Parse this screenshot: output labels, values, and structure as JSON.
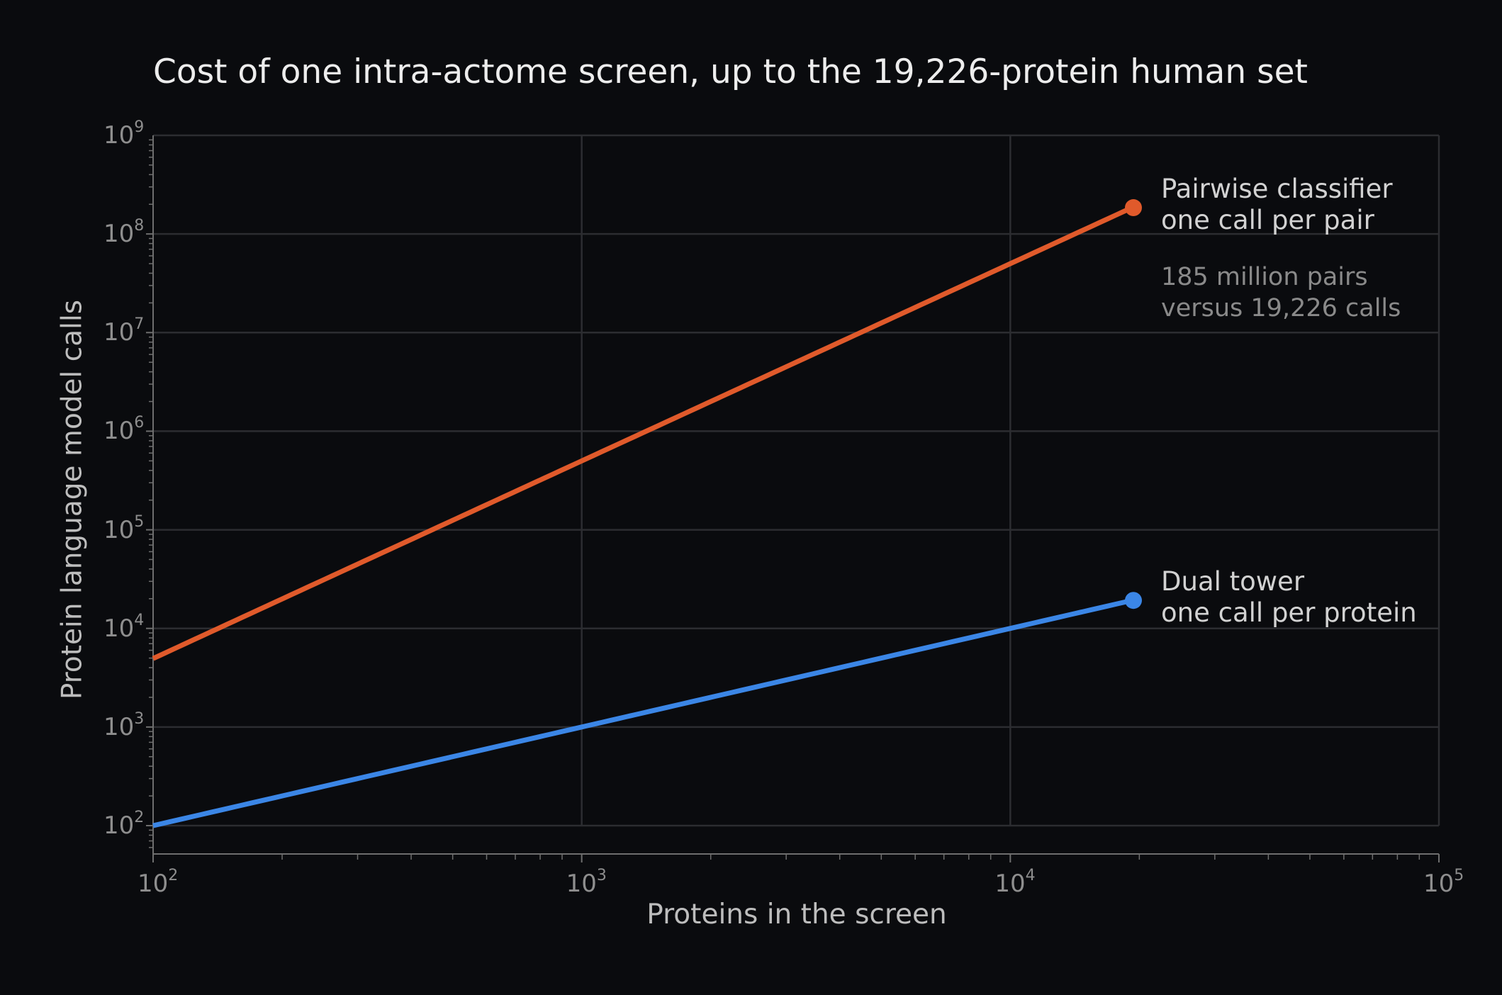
{
  "chart_data": {
    "type": "line",
    "title": "Cost of one intra-actome screen, up to the 19,226-protein human set",
    "xlabel": "Proteins in the screen",
    "ylabel": "Protein language model calls",
    "xscale": "log",
    "yscale": "log",
    "xlim": [
      100,
      100000
    ],
    "ylim": [
      50,
      1000000000
    ],
    "grid": true,
    "x_ticks": [
      {
        "base": "10",
        "exp": "2"
      },
      {
        "base": "10",
        "exp": "3"
      },
      {
        "base": "10",
        "exp": "4"
      },
      {
        "base": "10",
        "exp": "5"
      }
    ],
    "y_ticks": [
      {
        "base": "10",
        "exp": "2"
      },
      {
        "base": "10",
        "exp": "3"
      },
      {
        "base": "10",
        "exp": "4"
      },
      {
        "base": "10",
        "exp": "5"
      },
      {
        "base": "10",
        "exp": "6"
      },
      {
        "base": "10",
        "exp": "7"
      },
      {
        "base": "10",
        "exp": "8"
      },
      {
        "base": "10",
        "exp": "9"
      }
    ],
    "series": [
      {
        "key": "pairwise",
        "color": "#e05a2b",
        "formula": "n(n-1)/2",
        "x": [
          100,
          1000,
          10000,
          19226
        ],
        "y": [
          4950,
          499500,
          49995000,
          184812825
        ],
        "endpoint": [
          19226,
          184812825
        ],
        "label_lines": [
          "Pairwise classifier",
          "one call per pair"
        ]
      },
      {
        "key": "dual",
        "color": "#3b86e6",
        "formula": "n",
        "x": [
          100,
          1000,
          10000,
          19226
        ],
        "y": [
          100,
          1000,
          10000,
          19226
        ],
        "endpoint": [
          19226,
          19226
        ],
        "label_lines": [
          "Dual tower",
          "one call per protein"
        ]
      }
    ],
    "annotations": [
      {
        "lines": [
          "185 million pairs",
          "versus 19,226 calls"
        ]
      }
    ]
  },
  "colors": {
    "background": "#0a0b0e",
    "grid": "#2c2d31",
    "axis": "#6e6e6e"
  }
}
